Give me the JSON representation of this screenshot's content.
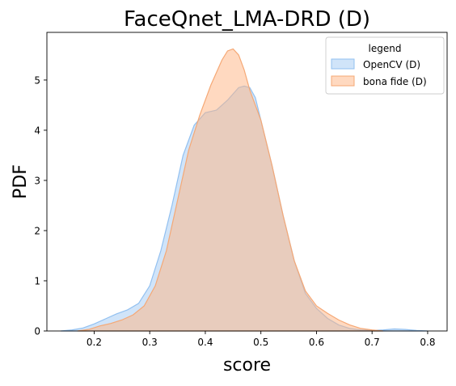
{
  "chart_data": {
    "type": "area",
    "title": "FaceQnet_LMA-DRD (D)",
    "xlabel": "score",
    "ylabel": "PDF",
    "xlim": [
      0.115,
      0.835
    ],
    "ylim": [
      0,
      5.95
    ],
    "xticks": [
      "0.2",
      "0.3",
      "0.4",
      "0.5",
      "0.6",
      "0.7",
      "0.8"
    ],
    "yticks": [
      "0",
      "1",
      "2",
      "3",
      "4",
      "5"
    ],
    "grid": false,
    "legend": {
      "title": "legend",
      "placement": "top-right",
      "entries": [
        "OpenCV (D)",
        "bona fide (D)"
      ]
    },
    "series": [
      {
        "name": "OpenCV (D)",
        "fill": "#a1c9f4",
        "stroke": "#92c0f0",
        "x": [
          0.14,
          0.16,
          0.18,
          0.2,
          0.22,
          0.24,
          0.26,
          0.28,
          0.3,
          0.32,
          0.34,
          0.36,
          0.38,
          0.4,
          0.42,
          0.44,
          0.46,
          0.47,
          0.48,
          0.49,
          0.5,
          0.52,
          0.54,
          0.56,
          0.58,
          0.6,
          0.62,
          0.64,
          0.66,
          0.68,
          0.7,
          0.72,
          0.74,
          0.76,
          0.78,
          0.8
        ],
        "y": [
          0.0,
          0.02,
          0.06,
          0.14,
          0.24,
          0.34,
          0.42,
          0.55,
          0.9,
          1.6,
          2.5,
          3.5,
          4.1,
          4.35,
          4.4,
          4.6,
          4.85,
          4.88,
          4.85,
          4.65,
          4.2,
          3.3,
          2.3,
          1.4,
          0.75,
          0.45,
          0.25,
          0.12,
          0.05,
          0.02,
          0.01,
          0.02,
          0.04,
          0.03,
          0.01,
          0.0
        ]
      },
      {
        "name": "bona fide (D)",
        "fill": "#ffb482",
        "stroke": "#f5a875",
        "x": [
          0.17,
          0.19,
          0.21,
          0.23,
          0.25,
          0.27,
          0.29,
          0.31,
          0.33,
          0.35,
          0.37,
          0.39,
          0.41,
          0.43,
          0.44,
          0.45,
          0.46,
          0.47,
          0.48,
          0.5,
          0.52,
          0.54,
          0.56,
          0.58,
          0.6,
          0.62,
          0.64,
          0.66,
          0.68,
          0.7,
          0.72
        ],
        "y": [
          0.0,
          0.03,
          0.1,
          0.15,
          0.22,
          0.32,
          0.5,
          0.9,
          1.6,
          2.6,
          3.6,
          4.3,
          4.9,
          5.4,
          5.58,
          5.62,
          5.5,
          5.2,
          4.8,
          4.2,
          3.3,
          2.3,
          1.4,
          0.8,
          0.5,
          0.35,
          0.22,
          0.12,
          0.05,
          0.02,
          0.0
        ]
      }
    ]
  }
}
